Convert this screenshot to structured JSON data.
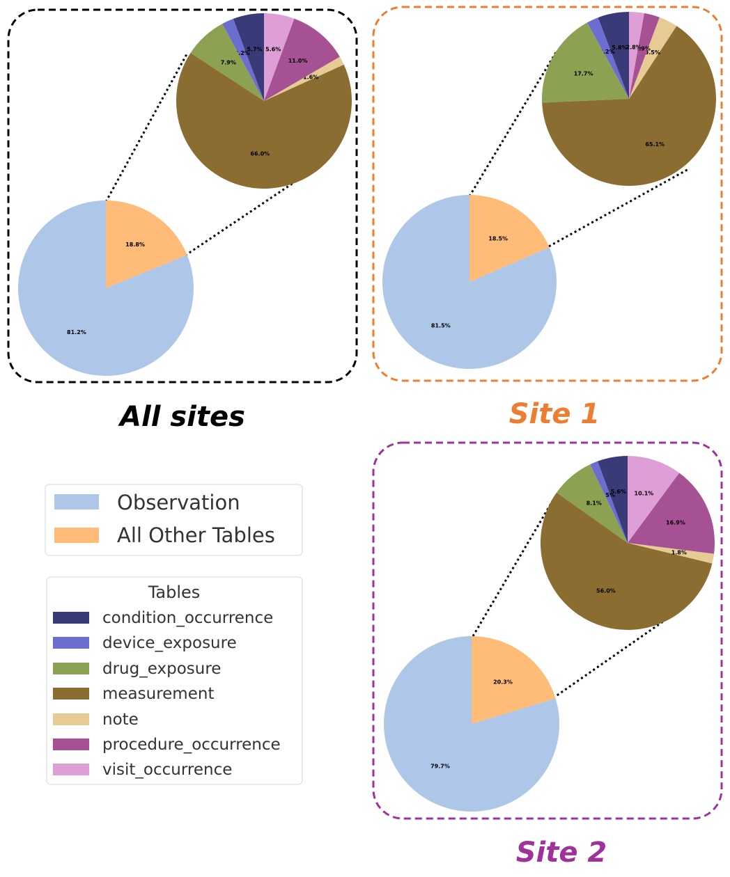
{
  "legend_main": {
    "entries": [
      {
        "label": "Observation",
        "color": "#aec7e8"
      },
      {
        "label": "All Other Tables",
        "color": "#ffbb78"
      }
    ]
  },
  "legend_tables": {
    "title": "Tables",
    "entries": [
      {
        "label": "condition_occurrence",
        "color": "#393b79"
      },
      {
        "label": "device_exposure",
        "color": "#6b6ecf"
      },
      {
        "label": "drug_exposure",
        "color": "#8ca252"
      },
      {
        "label": "measurement",
        "color": "#8c6d31"
      },
      {
        "label": "note",
        "color": "#e7cb94"
      },
      {
        "label": "procedure_occurrence",
        "color": "#a55194"
      },
      {
        "label": "visit_occurrence",
        "color": "#de9ed6"
      }
    ]
  },
  "chart_data": [
    {
      "type": "pie",
      "title": "All sites",
      "title_color": "#000000",
      "border_color": "#000000",
      "main_pie": {
        "labels": [
          "Observation",
          "All Other Tables"
        ],
        "values": [
          81.2,
          18.8
        ],
        "value_labels": [
          "81.2%",
          "18.8%"
        ]
      },
      "detail_pie": {
        "labels": [
          "condition_occurrence",
          "device_exposure",
          "drug_exposure",
          "measurement",
          "note",
          "procedure_occurrence",
          "visit_occurrence"
        ],
        "values": [
          5.7,
          2.2,
          7.9,
          66.0,
          1.6,
          11.0,
          5.6
        ],
        "value_labels": [
          "5.7%",
          "2.2%",
          "7.9%",
          "66.0%",
          "1.6%",
          "11.0%",
          "5.6%"
        ]
      }
    },
    {
      "type": "pie",
      "title": "Site 1",
      "title_color": "#ed7d31",
      "border_color": "#ed7d31",
      "main_pie": {
        "labels": [
          "Observation",
          "All Other Tables"
        ],
        "values": [
          81.5,
          18.5
        ],
        "value_labels": [
          "81.5%",
          "18.5%"
        ]
      },
      "detail_pie": {
        "labels": [
          "condition_occurrence",
          "device_exposure",
          "drug_exposure",
          "measurement",
          "note",
          "procedure_occurrence",
          "visit_occurrence"
        ],
        "values": [
          5.8,
          2.2,
          17.7,
          65.1,
          3.5,
          2.9,
          2.8
        ],
        "value_labels": [
          "5.8%",
          "2.2%",
          "17.7%",
          "65.1%",
          "3.5%",
          "2.9%",
          "2.8%"
        ]
      }
    },
    {
      "type": "pie",
      "title": "Site 2",
      "title_color": "#a0309a",
      "border_color": "#a0309a",
      "main_pie": {
        "labels": [
          "Observation",
          "All Other Tables"
        ],
        "values": [
          79.7,
          20.3
        ],
        "value_labels": [
          "79.7%",
          "20.3%"
        ]
      },
      "detail_pie": {
        "labels": [
          "condition_occurrence",
          "device_exposure",
          "drug_exposure",
          "measurement",
          "note",
          "procedure_occurrence",
          "visit_occurrence"
        ],
        "values": [
          5.6,
          1.5,
          8.1,
          56.0,
          1.8,
          16.9,
          10.1
        ],
        "value_labels": [
          "5.6%",
          "1.5%",
          "8.1%",
          "56.0%",
          "1.8%",
          "16.9%",
          "10.1%"
        ]
      }
    }
  ]
}
